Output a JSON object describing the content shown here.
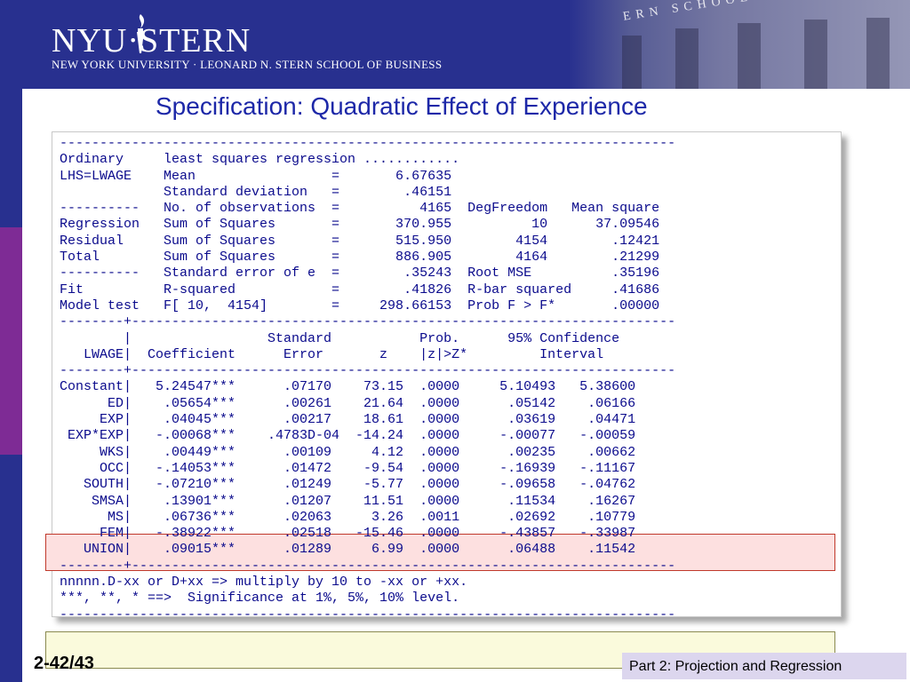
{
  "header": {
    "logo_text": "NYU·STERN",
    "school_name": "NEW YORK UNIVERSITY · LEONARD N. STERN SCHOOL OF BUSINESS",
    "building_engraving": "ERN SCHOOL OF BUSINESS"
  },
  "title": "Specification: Quadratic Effect of Experience",
  "output_lines": [
    "-----------------------------------------------------------------------------",
    "Ordinary     least squares regression ............",
    "LHS=LWAGE    Mean                 =       6.67635",
    "             Standard deviation   =        .46151",
    "----------   No. of observations  =          4165  DegFreedom   Mean square",
    "Regression   Sum of Squares       =       370.955          10      37.09546",
    "Residual     Sum of Squares       =       515.950        4154        .12421",
    "Total        Sum of Squares       =       886.905        4164        .21299",
    "----------   Standard error of e  =        .35243  Root MSE          .35196",
    "Fit          R-squared            =        .41826  R-bar squared     .41686",
    "Model test   F[ 10,  4154]        =     298.66153  Prob F > F*       .00000",
    "--------+--------------------------------------------------------------------",
    "        |                 Standard           Prob.      95% Confidence",
    "   LWAGE|  Coefficient      Error       z    |z|>Z*         Interval",
    "--------+--------------------------------------------------------------------",
    "Constant|   5.24547***      .07170    73.15  .0000     5.10493   5.38600",
    "      ED|    .05654***      .00261    21.64  .0000      .05142    .06166",
    "     EXP|    .04045***      .00217    18.61  .0000      .03619    .04471",
    " EXP*EXP|   -.00068***    .4783D-04  -14.24  .0000     -.00077   -.00059",
    "     WKS|    .00449***      .00109     4.12  .0000      .00235    .00662",
    "     OCC|   -.14053***      .01472    -9.54  .0000     -.16939   -.11167",
    "   SOUTH|   -.07210***      .01249    -5.77  .0000     -.09658   -.04762",
    "    SMSA|    .13901***      .01207    11.51  .0000      .11534    .16267",
    "      MS|    .06736***      .02063     3.26  .0011      .02692    .10779",
    "     FEM|   -.38922***      .02518   -15.46  .0000     -.43857   -.33987",
    "   UNION|    .09015***      .01289     6.99  .0000      .06488    .11542",
    "--------+--------------------------------------------------------------------",
    "nnnnn.D-xx or D+xx => multiply by 10 to -xx or +xx.",
    "***, **, * ==>  Significance at 1%, 5%, 10% level.",
    "-----------------------------------------------------------------------------"
  ],
  "footer": {
    "slide_number": "2-42/43",
    "section_label": "Part 2: Projection and Regression"
  },
  "colors": {
    "header_bg": "#28308f",
    "stripe_purple": "#7e2b95",
    "title_color": "#1d28a8",
    "output_text": "#0a0a8c",
    "highlight_exp": "#fde0e0",
    "highlight_ms": "#fafadc",
    "footer_bg": "#dcd6ee"
  }
}
